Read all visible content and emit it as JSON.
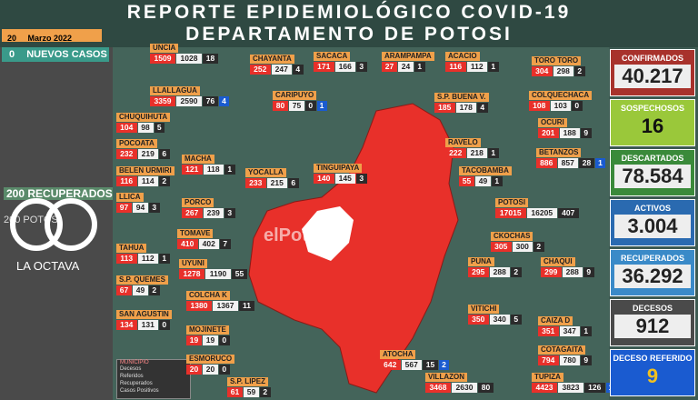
{
  "header": {
    "title_line1": "REPORTE EPIDEMIOLÓGICO COVID-19",
    "title_line2": "DEPARTAMENTO DE POTOSI",
    "date_day": "20",
    "date_month": "Marzo 2022",
    "new_cases_count": "0",
    "new_cases_label": "NUEVOS CASOS",
    "recovered_count": "200",
    "recovered_label": "RECUPERADOS",
    "left_note": "200 POTOSI"
  },
  "watermarks": {
    "logo_text": "LA OCTAVA",
    "newspaper": "elPotosí"
  },
  "municipalities": [
    {
      "name": "UNCIA",
      "values": [
        1509,
        1028,
        18
      ]
    },
    {
      "name": "LLALLAGUA",
      "values": [
        3359,
        2590,
        76,
        4
      ]
    },
    {
      "name": "CHUQUIHUTA",
      "values": [
        104,
        98,
        5
      ]
    },
    {
      "name": "POCOATA",
      "values": [
        232,
        219,
        6
      ]
    },
    {
      "name": "BELEN URMIRI",
      "values": [
        116,
        114,
        2
      ]
    },
    {
      "name": "LLICA",
      "values": [
        97,
        94,
        3
      ]
    },
    {
      "name": "TAHUA",
      "values": [
        113,
        112,
        1
      ]
    },
    {
      "name": "S.P. QUEMES",
      "values": [
        67,
        49,
        2
      ]
    },
    {
      "name": "SAN AGUSTIN",
      "values": [
        134,
        131,
        0
      ]
    },
    {
      "name": "S.P. LIPEZ",
      "values": [
        61,
        59,
        2
      ]
    },
    {
      "name": "CHAYANTA",
      "values": [
        252,
        247,
        4
      ]
    },
    {
      "name": "CARIPUYO",
      "values": [
        80,
        75,
        0,
        1
      ]
    },
    {
      "name": "MACHA",
      "values": [
        121,
        118,
        1
      ]
    },
    {
      "name": "YOCALLA",
      "values": [
        233,
        215,
        6
      ]
    },
    {
      "name": "PORCO",
      "values": [
        267,
        239,
        3
      ]
    },
    {
      "name": "TOMAVE",
      "values": [
        410,
        402,
        7
      ]
    },
    {
      "name": "UYUNI",
      "values": [
        1278,
        1190,
        55
      ]
    },
    {
      "name": "COLCHA K",
      "values": [
        1380,
        1367,
        11
      ]
    },
    {
      "name": "MOJINETE",
      "values": [
        19,
        19,
        0
      ]
    },
    {
      "name": "ESMORUCO",
      "values": [
        20,
        20,
        0
      ]
    },
    {
      "name": "SACACA",
      "values": [
        171,
        166,
        3
      ]
    },
    {
      "name": "ARAMPAMPA",
      "values": [
        27,
        24,
        1
      ]
    },
    {
      "name": "ACACIO",
      "values": [
        116,
        112,
        1
      ]
    },
    {
      "name": "TINGUIPAYA",
      "values": [
        140,
        145,
        3
      ]
    },
    {
      "name": "S.P. BUENA V.",
      "values": [
        185,
        178,
        4
      ]
    },
    {
      "name": "RAVELO",
      "values": [
        222,
        218,
        1
      ]
    },
    {
      "name": "TACOBAMBA",
      "values": [
        55,
        49,
        1
      ]
    },
    {
      "name": "POTOSI",
      "values": [
        17015,
        16205,
        407
      ]
    },
    {
      "name": "CKOCHAS",
      "values": [
        305,
        300,
        2
      ]
    },
    {
      "name": "PUNA",
      "values": [
        295,
        288,
        2
      ]
    },
    {
      "name": "VITICHI",
      "values": [
        350,
        340,
        5
      ]
    },
    {
      "name": "ATOCHA",
      "values": [
        642,
        567,
        15,
        2
      ]
    },
    {
      "name": "VILLAZON",
      "values": [
        3468,
        2630,
        80
      ]
    },
    {
      "name": "TORO TORO",
      "values": [
        304,
        298,
        2
      ]
    },
    {
      "name": "COLQUECHACA",
      "values": [
        108,
        103,
        0
      ]
    },
    {
      "name": "OCURI",
      "values": [
        201,
        188,
        9
      ]
    },
    {
      "name": "BETANZOS",
      "values": [
        886,
        857,
        28,
        1
      ]
    },
    {
      "name": "CHAQUI",
      "values": [
        299,
        288,
        9
      ]
    },
    {
      "name": "CAIZA D",
      "values": [
        351,
        347,
        1
      ]
    },
    {
      "name": "COTAGAITA",
      "values": [
        794,
        780,
        9
      ]
    },
    {
      "name": "TUPIZA",
      "values": [
        4423,
        3823,
        126,
        1
      ]
    }
  ],
  "stats": [
    {
      "label": "CONFIRMADOS",
      "value": "40.217"
    },
    {
      "label": "SOSPECHOSOS",
      "value": "16"
    },
    {
      "label": "DESCARTADOS",
      "value": "78.584"
    },
    {
      "label": "ACTIVOS",
      "value": "3.004"
    },
    {
      "label": "RECUPERADOS",
      "value": "36.292"
    },
    {
      "label": "DECESOS",
      "value": "912"
    },
    {
      "label": "DECESO REFERIDO",
      "value": "9"
    }
  ],
  "legend": {
    "title": "MUNICIPIO",
    "items": [
      "Decesos",
      "Referidos",
      "Recuperados",
      "Casos Positivos"
    ]
  }
}
